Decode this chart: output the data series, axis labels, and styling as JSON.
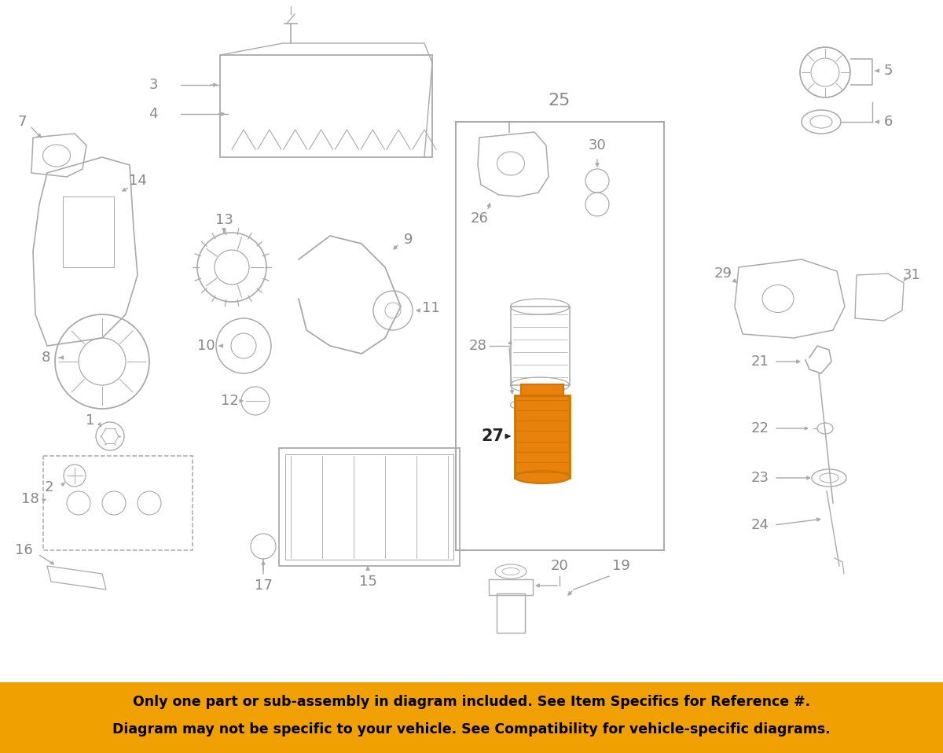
{
  "bg_color": "#ffffff",
  "banner_color": "#f0a000",
  "banner_text_line1": "Only one part or sub-assembly in diagram included. See Item Specifics for Reference #.",
  "banner_text_line2": "Diagram may not be specific to your vehicle. See Compatibility for vehicle-specific diagrams.",
  "highlight_color": "#e8820c",
  "line_color": "#aaaaaa",
  "text_color": "#888888",
  "label_fontsize": 13,
  "banner_fontsize": 12.5,
  "fig_w": 12.0,
  "fig_h": 9.58,
  "dpi": 100,
  "xlim": [
    0,
    1200
  ],
  "ylim": [
    0,
    958
  ]
}
